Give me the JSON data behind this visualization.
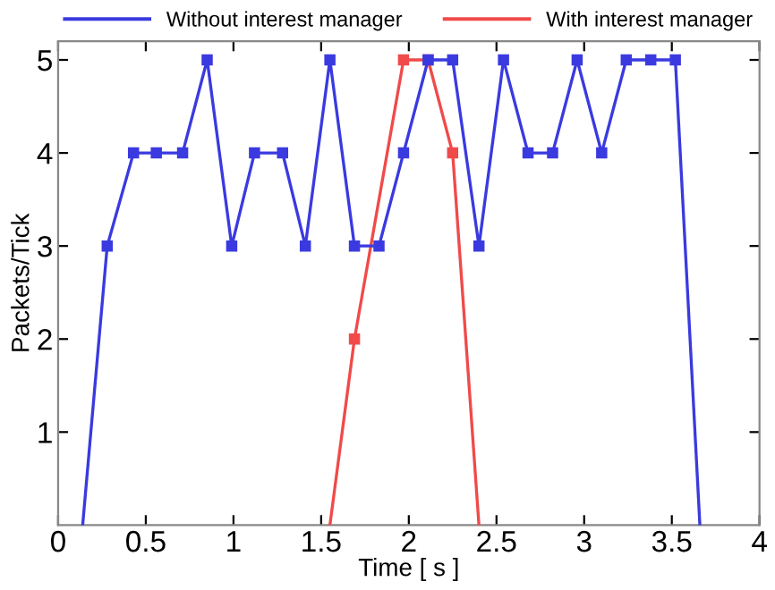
{
  "chart_data": {
    "type": "line",
    "xlabel": "Time [ s ]",
    "ylabel": "Packets/Tick",
    "xlim": [
      0,
      4
    ],
    "ylim": [
      0,
      5.2
    ],
    "xticks": [
      0,
      0.5,
      1,
      1.5,
      2,
      2.5,
      3,
      3.5,
      4
    ],
    "yticks": [
      1,
      2,
      3,
      4,
      5
    ],
    "grid": false,
    "legend": "top",
    "marker": "square",
    "line_style": "solid",
    "series": [
      {
        "name": "Without interest manager",
        "color": "#3a3ae0",
        "x": [
          0.14,
          0.28,
          0.43,
          0.56,
          0.71,
          0.85,
          0.99,
          1.12,
          1.28,
          1.41,
          1.55,
          1.69,
          1.83,
          1.97,
          2.11,
          2.25,
          2.4,
          2.54,
          2.68,
          2.82,
          2.96,
          3.1,
          3.24,
          3.38,
          3.52,
          3.66
        ],
        "values": [
          0,
          3,
          4,
          4,
          4,
          5,
          3,
          4,
          4,
          3,
          5,
          3,
          3,
          4,
          5,
          5,
          3,
          5,
          4,
          4,
          5,
          4,
          5,
          5,
          5,
          0
        ]
      },
      {
        "name": "With interest manager",
        "color": "#f04a4a",
        "x": [
          1.55,
          1.69,
          1.97,
          2.11,
          2.25,
          2.4
        ],
        "values": [
          0,
          2,
          5,
          5,
          4,
          0
        ]
      }
    ]
  }
}
